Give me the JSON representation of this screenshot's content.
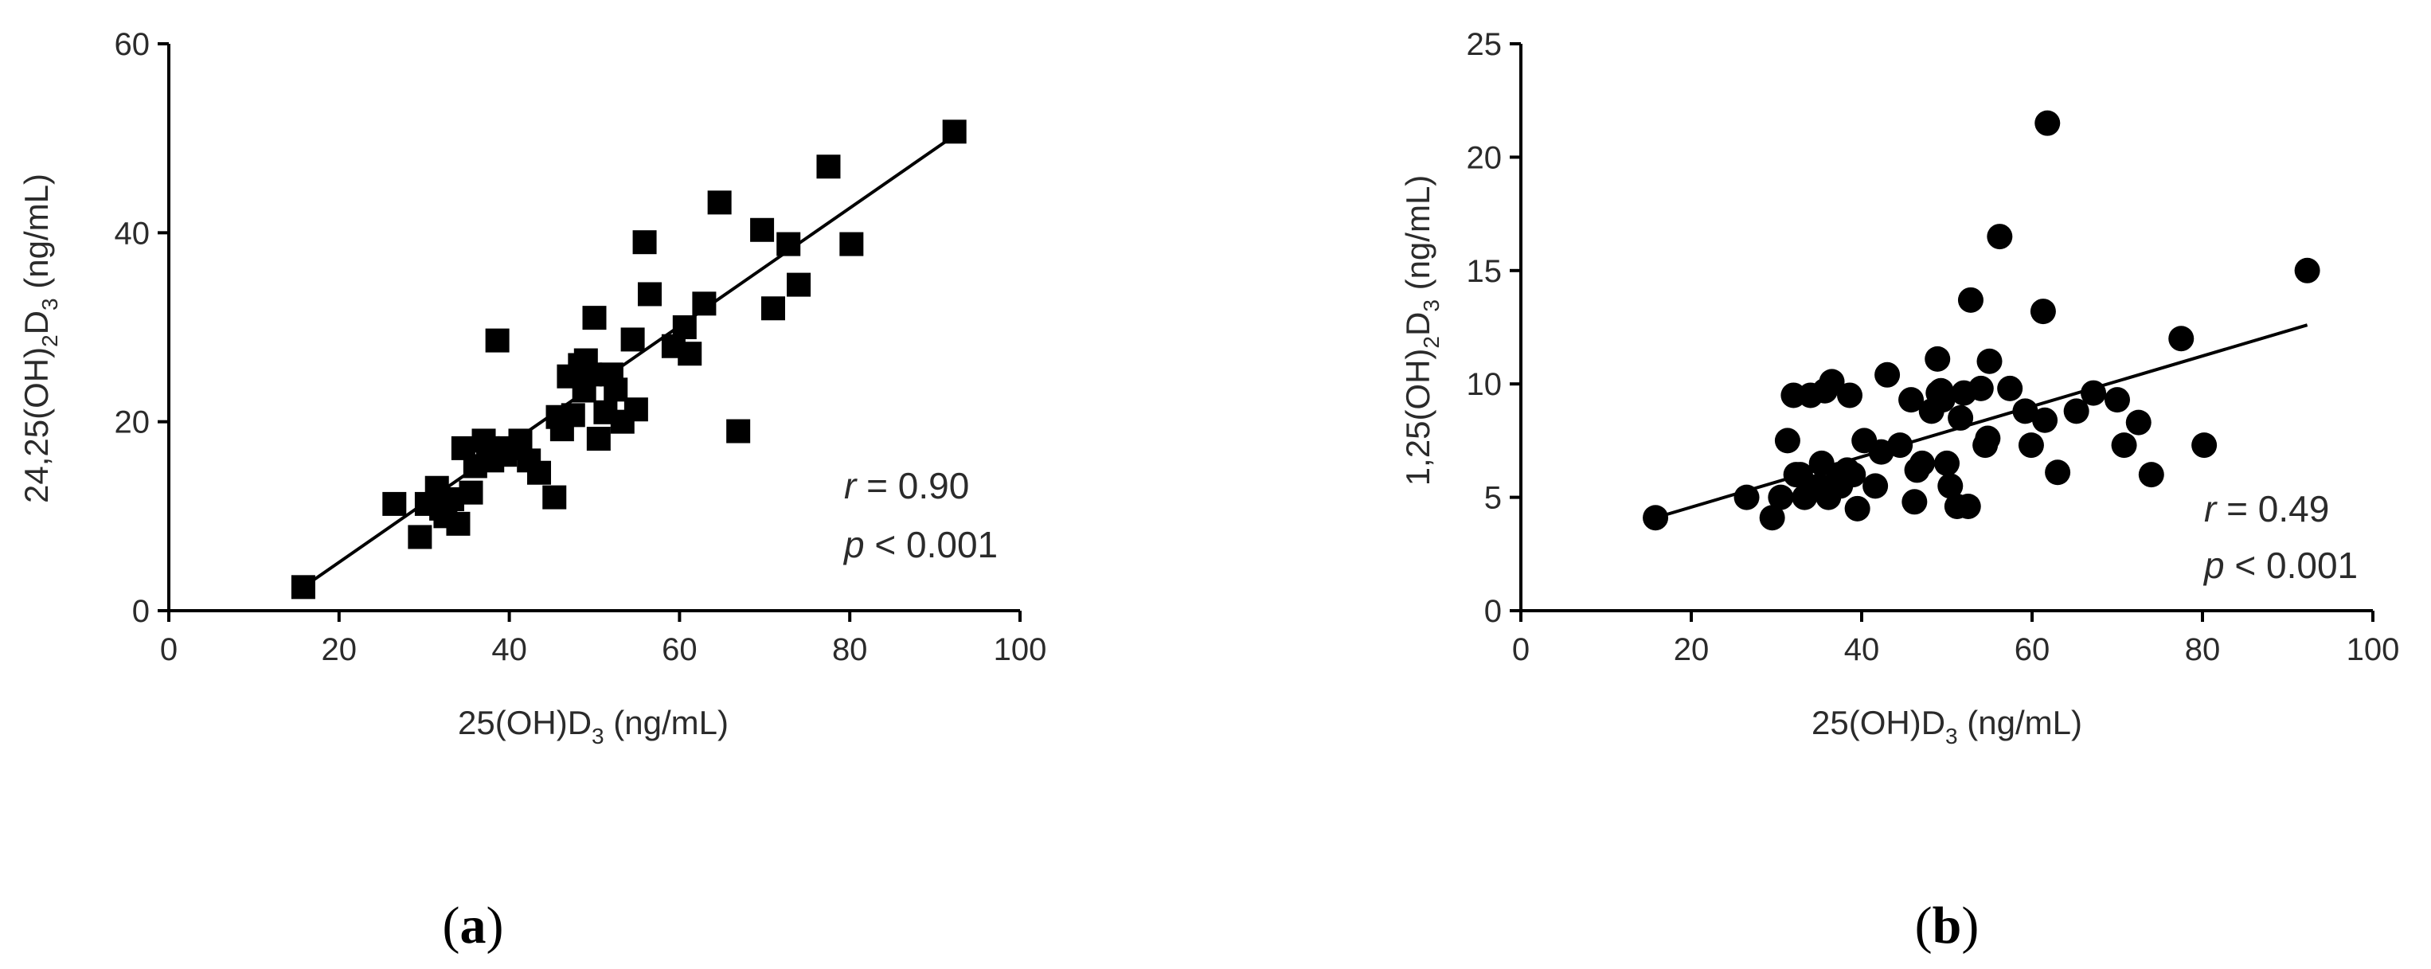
{
  "chart_data": [
    {
      "type": "scatter",
      "panel_label": "a",
      "marker": "square",
      "xlabel": {
        "main": "25(OH)D",
        "sub": "3",
        "rest": " (ng/mL)"
      },
      "ylabel": {
        "main": "24,25(OH)",
        "sub1": "2",
        "mid": "D",
        "sub2": "3",
        "rest": " (ng/mL)"
      },
      "xlim": [
        0,
        100
      ],
      "ylim": [
        0,
        60
      ],
      "xticks": [
        "0",
        "20",
        "40",
        "60",
        "80",
        "100"
      ],
      "yticks": [
        "0",
        "20",
        "40",
        "60"
      ],
      "fit_line": {
        "x": [
          15.8,
          92.3
        ],
        "y": [
          2.5,
          50.3
        ]
      },
      "stats": {
        "r_symbol": "r",
        "r_value": " = 0.90",
        "p_symbol": "p",
        "p_value": " < 0.001"
      },
      "x": [
        15.8,
        26.5,
        29.5,
        30.3,
        31.5,
        32.0,
        32.5,
        33.3,
        34.0,
        34.6,
        35.5,
        36.0,
        37.0,
        37.5,
        38.0,
        38.6,
        39.5,
        40.0,
        41.3,
        42.3,
        43.5,
        45.3,
        45.7,
        46.2,
        47.0,
        47.5,
        48.3,
        48.8,
        49.0,
        49.5,
        50.0,
        50.5,
        51.3,
        52.0,
        52.5,
        53.3,
        54.5,
        54.9,
        55.9,
        56.5,
        59.3,
        60.6,
        61.2,
        62.9,
        64.7,
        66.9,
        69.7,
        71.0,
        72.8,
        74.0,
        77.5,
        80.2,
        92.3
      ],
      "y": [
        2.5,
        11.3,
        7.8,
        11.3,
        13.0,
        10.8,
        10.0,
        11.8,
        9.2,
        17.2,
        12.5,
        15.3,
        18.0,
        17.2,
        15.9,
        28.6,
        16.5,
        17.2,
        18.0,
        15.9,
        14.6,
        12.0,
        20.5,
        19.2,
        24.8,
        20.7,
        26.0,
        23.3,
        26.5,
        25.0,
        31.0,
        18.2,
        21.0,
        25.0,
        23.4,
        20.0,
        28.7,
        21.3,
        39.0,
        33.5,
        28.0,
        30.0,
        27.2,
        32.5,
        43.2,
        19.0,
        40.3,
        32.0,
        38.8,
        34.5,
        47.0,
        38.8,
        50.7
      ]
    },
    {
      "type": "scatter",
      "panel_label": "b",
      "marker": "circle",
      "xlabel": {
        "main": "25(OH)D",
        "sub": "3",
        "rest": " (ng/mL)"
      },
      "ylabel": {
        "main": "1,25(OH)",
        "sub1": "2",
        "mid": "D",
        "sub2": "3",
        "rest": " (ng/mL)"
      },
      "xlim": [
        0,
        100
      ],
      "ylim": [
        0,
        25
      ],
      "xticks": [
        "0",
        "20",
        "40",
        "60",
        "80",
        "100"
      ],
      "yticks": [
        "0",
        "5",
        "10",
        "15",
        "20",
        "25"
      ],
      "fit_line": {
        "x": [
          15.8,
          92.3
        ],
        "y": [
          4.1,
          12.6
        ]
      },
      "stats": {
        "r_symbol": "r",
        "r_value": " = 0.49",
        "p_symbol": "p",
        "p_value": " < 0.001"
      },
      "x": [
        15.8,
        26.5,
        29.5,
        30.5,
        31.3,
        32.0,
        32.3,
        32.8,
        33.3,
        34.0,
        35.0,
        35.3,
        35.7,
        36.1,
        36.5,
        37.3,
        37.5,
        38.3,
        38.6,
        39.0,
        39.5,
        40.3,
        41.6,
        42.3,
        43.0,
        44.5,
        45.8,
        46.2,
        46.5,
        47.1,
        48.2,
        48.9,
        49.0,
        49.3,
        49.5,
        50.0,
        50.4,
        51.2,
        51.6,
        52.0,
        52.5,
        52.8,
        54.0,
        54.5,
        54.8,
        55.0,
        56.2,
        57.4,
        59.2,
        59.9,
        61.3,
        61.5,
        61.8,
        63.0,
        65.2,
        67.2,
        70.0,
        70.8,
        72.5,
        74.0,
        77.5,
        80.2,
        92.3
      ],
      "y": [
        4.1,
        5.0,
        4.1,
        5.0,
        7.5,
        9.5,
        6.0,
        6.0,
        5.0,
        9.5,
        5.5,
        6.5,
        9.7,
        5.0,
        10.1,
        6.0,
        5.5,
        6.2,
        9.5,
        6.0,
        4.5,
        7.5,
        5.5,
        7.0,
        10.4,
        7.3,
        9.3,
        4.8,
        6.2,
        6.5,
        8.8,
        11.1,
        9.6,
        9.7,
        9.3,
        6.5,
        5.5,
        4.6,
        8.5,
        9.6,
        4.6,
        13.7,
        9.8,
        7.3,
        7.6,
        11.0,
        16.5,
        9.8,
        8.8,
        7.3,
        13.2,
        8.4,
        21.5,
        6.1,
        8.8,
        9.6,
        9.3,
        7.3,
        8.3,
        6.0,
        12.0,
        7.3,
        15.0
      ]
    }
  ]
}
